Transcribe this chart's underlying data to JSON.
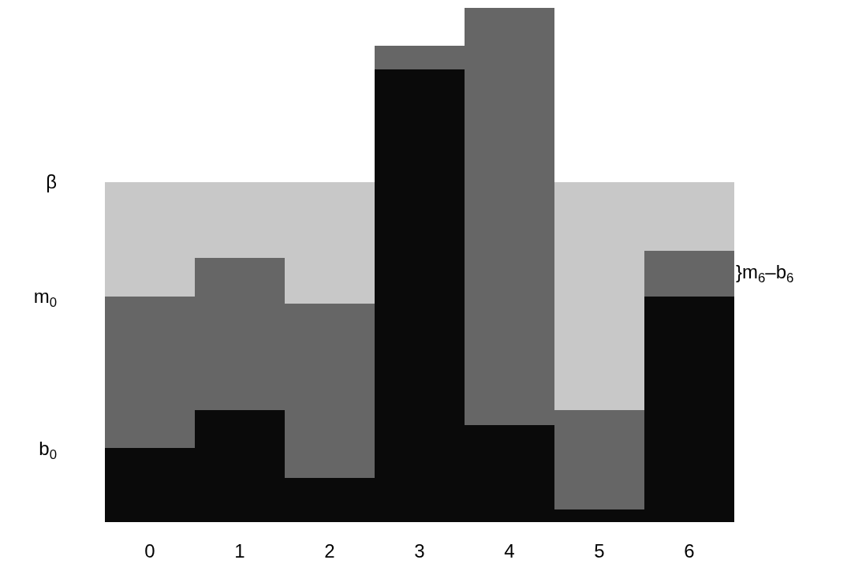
{
  "chart_data": {
    "type": "bar",
    "stacked": true,
    "ylim": [
      0,
      1
    ],
    "categories": [
      "0",
      "1",
      "2",
      "3",
      "4",
      "5",
      "6"
    ],
    "series": [
      {
        "color": "#0a0a0a",
        "values": [
          0.144,
          0.218,
          0.086,
          0.88,
          0.189,
          0.025,
          0.439
        ]
      },
      {
        "color": "#666666",
        "values": [
          0.294,
          0.296,
          0.339,
          0.046,
          0.811,
          0.193,
          0.089
        ]
      },
      {
        "color": "#c8c8c8",
        "values": [
          0.223,
          0.147,
          0.236,
          0,
          0,
          0.443,
          0.133
        ]
      }
    ],
    "yticks": [
      {
        "value": 0.144,
        "label": "b$_{0}$"
      },
      {
        "value": 0.439,
        "label": "m$_{0}$"
      },
      {
        "value": 0.661,
        "label": "β"
      }
    ],
    "annotations": [
      "}m$_{6}$–b$_{6}$"
    ]
  }
}
